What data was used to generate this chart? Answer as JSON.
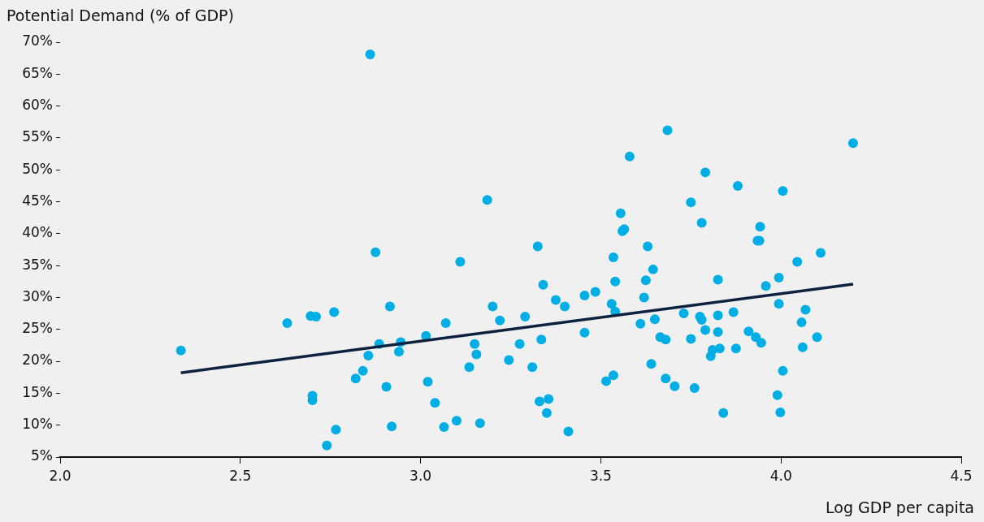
{
  "chart_data": {
    "type": "scatter",
    "xlabel": "Log GDP per capita",
    "ylabel": "Potential Demand (% of GDP)",
    "xlim": [
      2,
      4.5
    ],
    "xticks": [
      {
        "value": 2,
        "label": "2.0"
      },
      {
        "value": 2.5,
        "label": "2.5"
      },
      {
        "value": 3,
        "label": "3.0"
      },
      {
        "value": 3.5,
        "label": "3.5"
      },
      {
        "value": 4,
        "label": "4.0"
      },
      {
        "value": 4.5,
        "label": "4.5"
      }
    ],
    "ylim": [
      5,
      70
    ],
    "yticks": [
      {
        "value": 5,
        "label": "5%"
      },
      {
        "value": 10,
        "label": "10%"
      },
      {
        "value": 15,
        "label": "15%"
      },
      {
        "value": 20,
        "label": "20%"
      },
      {
        "value": 25,
        "label": "25%"
      },
      {
        "value": 30,
        "label": "30%"
      },
      {
        "value": 35,
        "label": "35%"
      },
      {
        "value": 40,
        "label": "40%"
      },
      {
        "value": 45,
        "label": "45%"
      },
      {
        "value": 50,
        "label": "50%"
      },
      {
        "value": 55,
        "label": "55%"
      },
      {
        "value": 60,
        "label": "60%"
      },
      {
        "value": 65,
        "label": "65%"
      },
      {
        "value": 70,
        "label": "70%"
      }
    ],
    "grid": false,
    "legend": false,
    "marker": "circle",
    "series": [
      {
        "color": "#00aee6",
        "x": [
          2.335,
          2.63,
          2.695,
          2.71,
          2.76,
          2.7,
          2.7,
          2.765,
          2.74,
          2.82,
          2.84,
          2.855,
          2.885,
          2.86,
          2.875,
          2.915,
          2.905,
          2.92,
          2.94,
          2.945,
          3.015,
          3.02,
          3.04,
          3.065,
          3.07,
          3.1,
          3.11,
          3.135,
          3.15,
          3.155,
          3.165,
          3.185,
          3.2,
          3.22,
          3.245,
          3.275,
          3.29,
          3.31,
          3.325,
          3.33,
          3.335,
          3.34,
          3.35,
          3.355,
          3.375,
          3.4,
          3.41,
          3.455,
          3.455,
          3.485,
          3.515,
          3.53,
          3.535,
          3.54,
          3.535,
          3.54,
          3.555,
          3.56,
          3.565,
          3.58,
          3.61,
          3.62,
          3.625,
          3.63,
          3.64,
          3.645,
          3.65,
          3.665,
          3.68,
          3.685,
          3.68,
          3.705,
          3.73,
          3.75,
          3.75,
          3.76,
          3.775,
          3.78,
          3.78,
          3.79,
          3.79,
          3.81,
          3.805,
          3.825,
          3.825,
          3.825,
          3.83,
          3.84,
          3.868,
          3.875,
          3.88,
          3.91,
          3.93,
          3.935,
          3.945,
          3.94,
          3.942,
          3.958,
          4.005,
          3.994,
          3.994,
          4.11,
          4.045,
          4.068,
          4.057,
          4.1,
          4.06,
          4.005,
          3.99,
          3.998,
          4.2
        ],
        "values": [
          21.7,
          26.0,
          27.1,
          27.0,
          27.7,
          14.6,
          13.9,
          9.3,
          6.8,
          17.3,
          18.5,
          20.9,
          22.7,
          68.1,
          37.1,
          28.6,
          16.0,
          9.8,
          21.5,
          23.0,
          24.0,
          16.8,
          13.5,
          9.7,
          26.0,
          10.7,
          35.6,
          19.1,
          22.7,
          21.1,
          10.3,
          45.3,
          28.6,
          26.4,
          20.2,
          22.7,
          27.0,
          19.1,
          38.0,
          13.7,
          23.4,
          32.0,
          11.9,
          14.1,
          29.6,
          28.6,
          9.0,
          30.3,
          24.5,
          30.9,
          16.9,
          29.0,
          36.3,
          32.5,
          17.8,
          27.8,
          43.2,
          40.4,
          40.7,
          52.1,
          25.9,
          30.0,
          32.7,
          38.0,
          19.6,
          34.4,
          26.6,
          23.8,
          23.4,
          56.2,
          17.3,
          16.1,
          27.5,
          44.9,
          23.5,
          15.8,
          27.0,
          26.5,
          41.7,
          49.6,
          24.9,
          21.8,
          20.8,
          27.2,
          32.8,
          24.6,
          22.0,
          11.9,
          27.7,
          22.0,
          47.5,
          24.7,
          23.8,
          38.9,
          22.9,
          38.9,
          41.1,
          31.8,
          46.7,
          33.1,
          29.0,
          37.0,
          35.6,
          28.1,
          26.1,
          23.8,
          22.2,
          18.5,
          14.7,
          12.0,
          54.2
        ]
      },
      {
        "type": "line",
        "color": "#0d2240",
        "x": [
          2.335,
          4.2
        ],
        "values": [
          18.2,
          32.1
        ],
        "marker": "none",
        "line_style": "solid"
      }
    ]
  }
}
